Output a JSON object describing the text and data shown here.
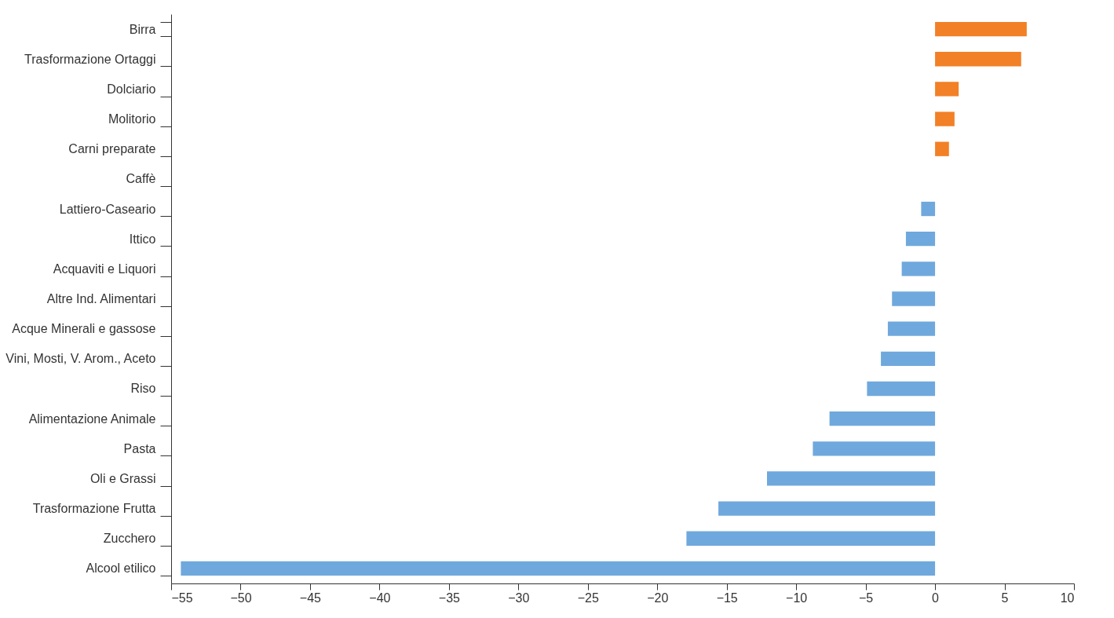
{
  "chart_data": {
    "type": "bar",
    "orientation": "horizontal",
    "categories": [
      "Birra",
      "Trasformazione Ortaggi",
      "Dolciario",
      "Molitorio",
      "Carni preparate",
      "Caffè",
      "Lattiero-Caseario",
      "Ittico",
      "Acquaviti e Liquori",
      "Altre Ind. Alimentari",
      "Acque Minerali e gassose",
      "Vini, Mosti, V. Arom., Aceto",
      "Riso",
      "Alimentazione Animale",
      "Pasta",
      "Oli e Grassi",
      "Trasformazione Frutta",
      "Zucchero",
      "Alcool etilico"
    ],
    "values": [
      6.6,
      6.2,
      1.7,
      1.4,
      1.0,
      0,
      -1.0,
      -2.1,
      -2.4,
      -3.1,
      -3.4,
      -3.9,
      -4.9,
      -7.6,
      -8.8,
      -12.1,
      -15.6,
      -17.9,
      -54.3
    ],
    "colors": [
      "#f28026",
      "#f28026",
      "#f28026",
      "#f28026",
      "#f28026",
      "#6fa8dc",
      "#6fa8dc",
      "#6fa8dc",
      "#6fa8dc",
      "#6fa8dc",
      "#6fa8dc",
      "#6fa8dc",
      "#6fa8dc",
      "#6fa8dc",
      "#6fa8dc",
      "#6fa8dc",
      "#6fa8dc",
      "#6fa8dc",
      "#6fa8dc"
    ],
    "xlim": [
      -55,
      10
    ],
    "xticks": [
      -55,
      -50,
      -45,
      -40,
      -35,
      -30,
      -25,
      -20,
      -15,
      -10,
      -5,
      0,
      5,
      10
    ],
    "grid": false
  }
}
